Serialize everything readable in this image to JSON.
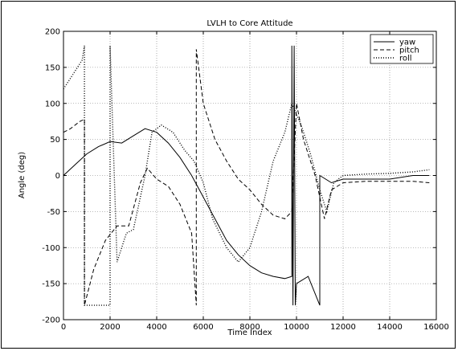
{
  "chart_data": {
    "type": "line",
    "title": "LVLH to Core Attitude",
    "xlabel": "Time Index",
    "ylabel": "Angle (deg)",
    "xlim": [
      0,
      16000
    ],
    "ylim": [
      -200,
      200
    ],
    "xticks": [
      "0",
      "2000",
      "4000",
      "6000",
      "8000",
      "10000",
      "12000",
      "14000",
      "16000"
    ],
    "yticks": [
      "200",
      "150",
      "100",
      "50",
      "0",
      "-50",
      "-100",
      "-150",
      "-200"
    ],
    "grid": true,
    "legend_position": "top-right",
    "series": [
      {
        "name": "yaw",
        "style": "solid",
        "points": [
          [
            0,
            0
          ],
          [
            500,
            15
          ],
          [
            1000,
            30
          ],
          [
            1500,
            40
          ],
          [
            2000,
            47
          ],
          [
            2500,
            45
          ],
          [
            3000,
            55
          ],
          [
            3500,
            65
          ],
          [
            4000,
            60
          ],
          [
            4500,
            45
          ],
          [
            5000,
            25
          ],
          [
            5500,
            0
          ],
          [
            6000,
            -30
          ],
          [
            6500,
            -60
          ],
          [
            7000,
            -90
          ],
          [
            7500,
            -110
          ],
          [
            8000,
            -125
          ],
          [
            8500,
            -135
          ],
          [
            9000,
            -140
          ],
          [
            9500,
            -143
          ],
          [
            9800,
            -140
          ],
          [
            9800,
            180
          ],
          [
            9850,
            -180
          ],
          [
            9900,
            180
          ],
          [
            9950,
            -180
          ],
          [
            10000,
            -150
          ],
          [
            10500,
            -140
          ],
          [
            11000,
            -180
          ],
          [
            11000,
            0
          ],
          [
            11500,
            -10
          ],
          [
            12000,
            -5
          ],
          [
            13000,
            -5
          ],
          [
            14000,
            -5
          ],
          [
            15000,
            0
          ],
          [
            15700,
            0
          ]
        ]
      },
      {
        "name": "pitch",
        "style": "dashed",
        "points": [
          [
            0,
            60
          ],
          [
            300,
            65
          ],
          [
            700,
            75
          ],
          [
            900,
            78
          ],
          [
            900,
            -180
          ],
          [
            1300,
            -130
          ],
          [
            1800,
            -90
          ],
          [
            2300,
            -70
          ],
          [
            2800,
            -70
          ],
          [
            3300,
            -10
          ],
          [
            3600,
            10
          ],
          [
            4000,
            -5
          ],
          [
            4500,
            -15
          ],
          [
            5000,
            -40
          ],
          [
            5500,
            -80
          ],
          [
            5700,
            -180
          ],
          [
            5700,
            175
          ],
          [
            6000,
            100
          ],
          [
            6500,
            50
          ],
          [
            7000,
            20
          ],
          [
            7500,
            -5
          ],
          [
            8000,
            -20
          ],
          [
            8500,
            -40
          ],
          [
            9000,
            -55
          ],
          [
            9500,
            -60
          ],
          [
            9800,
            -50
          ],
          [
            10000,
            100
          ],
          [
            10300,
            50
          ],
          [
            10800,
            0
          ],
          [
            11200,
            -60
          ],
          [
            11500,
            -20
          ],
          [
            12000,
            -10
          ],
          [
            13000,
            -8
          ],
          [
            14000,
            -8
          ],
          [
            15000,
            -8
          ],
          [
            15700,
            -10
          ]
        ]
      },
      {
        "name": "roll",
        "style": "dotted",
        "points": [
          [
            0,
            120
          ],
          [
            400,
            140
          ],
          [
            800,
            160
          ],
          [
            900,
            180
          ],
          [
            900,
            -180
          ],
          [
            1500,
            -180
          ],
          [
            2000,
            -180
          ],
          [
            2000,
            180
          ],
          [
            2300,
            -120
          ],
          [
            2700,
            -80
          ],
          [
            3000,
            -75
          ],
          [
            3500,
            0
          ],
          [
            3800,
            60
          ],
          [
            4200,
            70
          ],
          [
            4700,
            60
          ],
          [
            5200,
            35
          ],
          [
            5600,
            20
          ],
          [
            6000,
            -10
          ],
          [
            6400,
            -60
          ],
          [
            7000,
            -100
          ],
          [
            7500,
            -120
          ],
          [
            8000,
            -100
          ],
          [
            8500,
            -50
          ],
          [
            9000,
            20
          ],
          [
            9500,
            60
          ],
          [
            9800,
            100
          ],
          [
            10200,
            70
          ],
          [
            10600,
            30
          ],
          [
            11000,
            -20
          ],
          [
            11300,
            -50
          ],
          [
            11600,
            -10
          ],
          [
            12000,
            0
          ],
          [
            13000,
            2
          ],
          [
            14000,
            3
          ],
          [
            15000,
            5
          ],
          [
            15700,
            8
          ]
        ]
      }
    ]
  }
}
